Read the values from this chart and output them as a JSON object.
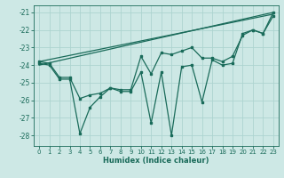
{
  "xlabel": "Humidex (Indice chaleur)",
  "bg_color": "#cde8e5",
  "grid_color": "#add4d0",
  "line_color": "#1a6b5a",
  "xlim": [
    -0.5,
    23.5
  ],
  "ylim": [
    -28.6,
    -20.6
  ],
  "yticks": [
    -28,
    -27,
    -26,
    -25,
    -24,
    -23,
    -22,
    -21
  ],
  "xticks": [
    0,
    1,
    2,
    3,
    4,
    5,
    6,
    7,
    8,
    9,
    10,
    11,
    12,
    13,
    14,
    15,
    16,
    17,
    18,
    19,
    20,
    21,
    22,
    23
  ],
  "series_volatile_x": [
    0,
    1,
    2,
    3,
    4,
    5,
    6,
    7,
    8,
    9,
    10,
    11,
    12,
    13,
    14,
    15,
    16,
    17,
    18,
    19,
    20,
    21,
    22,
    23
  ],
  "series_volatile_y": [
    -23.9,
    -24.0,
    -24.8,
    -24.8,
    -27.9,
    -26.4,
    -25.8,
    -25.3,
    -25.5,
    -25.5,
    -24.4,
    -27.3,
    -24.4,
    -28.0,
    -24.1,
    -24.0,
    -26.1,
    -23.7,
    -24.0,
    -23.9,
    -22.2,
    -22.0,
    -22.2,
    -21.0
  ],
  "series_smooth_x": [
    0,
    1,
    2,
    3,
    4,
    5,
    6,
    7,
    8,
    9,
    10,
    11,
    12,
    13,
    14,
    15,
    16,
    17,
    18,
    19,
    20,
    21,
    22,
    23
  ],
  "series_smooth_y": [
    -23.8,
    -23.9,
    -24.7,
    -24.7,
    -25.9,
    -25.7,
    -25.6,
    -25.3,
    -25.4,
    -25.4,
    -23.5,
    -24.5,
    -23.3,
    -23.4,
    -23.2,
    -23.0,
    -23.6,
    -23.6,
    -23.8,
    -23.5,
    -22.3,
    -22.0,
    -22.2,
    -21.2
  ],
  "trend_x": [
    0,
    23
  ],
  "trend_y": [
    -23.8,
    -21.1
  ],
  "trend2_x": [
    0,
    23
  ],
  "trend2_y": [
    -24.0,
    -21.0
  ]
}
